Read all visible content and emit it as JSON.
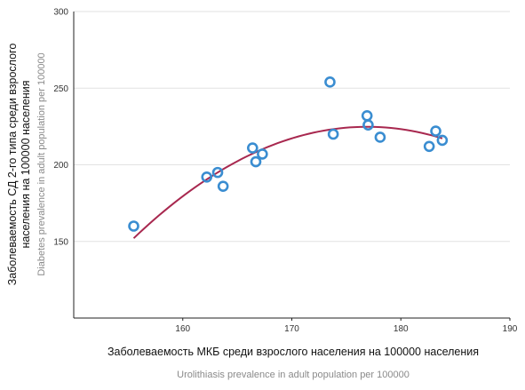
{
  "chart_data": {
    "type": "scatter",
    "title": "",
    "xlabel": "Заболеваемость МКБ среди взрослого населения на 100000 населения",
    "xlabel_en": "Urolithiasis prevalence in adult population per 100000",
    "ylabel_lines": [
      "Заболеваемость СД 2-го типа среди взрослого",
      "населения на 100000 населения"
    ],
    "ylabel_en": "Diabetes prevalence in adult population per 100000",
    "xlim": [
      150,
      190
    ],
    "ylim": [
      100,
      300
    ],
    "xticks": [
      "160",
      "170",
      "180",
      "190"
    ],
    "yticks": [
      "150",
      "200",
      "250",
      "300"
    ],
    "grid": "horizontal",
    "marker_color": "#3a8dd1",
    "fit_color": "#a8284f",
    "points": [
      {
        "x": 155.5,
        "y": 160
      },
      {
        "x": 162.2,
        "y": 192
      },
      {
        "x": 163.2,
        "y": 195
      },
      {
        "x": 163.7,
        "y": 186
      },
      {
        "x": 166.4,
        "y": 211
      },
      {
        "x": 166.7,
        "y": 202
      },
      {
        "x": 167.3,
        "y": 207
      },
      {
        "x": 173.5,
        "y": 254
      },
      {
        "x": 173.8,
        "y": 220
      },
      {
        "x": 176.9,
        "y": 232
      },
      {
        "x": 177.0,
        "y": 226
      },
      {
        "x": 178.1,
        "y": 218
      },
      {
        "x": 182.6,
        "y": 212
      },
      {
        "x": 183.2,
        "y": 222
      },
      {
        "x": 183.8,
        "y": 216
      }
    ],
    "fit_curve": {
      "type": "quadratic",
      "x_range": [
        155.5,
        183.8
      ],
      "points": [
        {
          "x": 155.5,
          "y": 152
        },
        {
          "x": 162.0,
          "y": 190
        },
        {
          "x": 169.0,
          "y": 214
        },
        {
          "x": 176.5,
          "y": 225.5
        },
        {
          "x": 183.8,
          "y": 217
        }
      ]
    }
  }
}
